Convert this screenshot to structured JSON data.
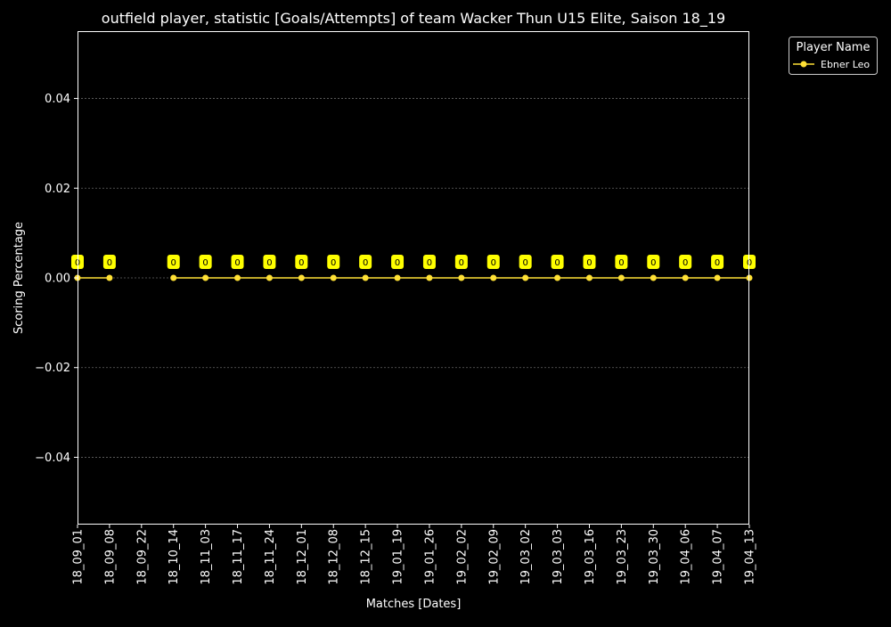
{
  "chart_data": {
    "type": "line",
    "title": "outfield player, statistic [Goals/Attempts] of team Wacker Thun U15 Elite, Saison 18_19",
    "xlabel": "Matches [Dates]",
    "ylabel": "Scoring Percentage",
    "categories": [
      "18_09_01",
      "18_09_08",
      "18_09_22",
      "18_10_14",
      "18_11_03",
      "18_11_17",
      "18_11_24",
      "18_12_01",
      "18_12_08",
      "18_12_15",
      "19_01_19",
      "19_01_26",
      "19_02_02",
      "19_02_09",
      "19_03_02",
      "19_03_03",
      "19_03_16",
      "19_03_23",
      "19_03_30",
      "19_04_06",
      "19_04_07",
      "19_04_13"
    ],
    "series": [
      {
        "name": "Ebner Leo",
        "values": [
          0,
          0,
          null,
          0,
          0,
          0,
          0,
          0,
          0,
          0,
          0,
          0,
          0,
          0,
          0,
          0,
          0,
          0,
          0,
          0,
          0,
          0
        ],
        "labels": [
          "0",
          "0",
          null,
          "0",
          "0",
          "0",
          "0",
          "0",
          "0",
          "0",
          "0",
          "0",
          "0",
          "0",
          "0",
          "0",
          "0",
          "0",
          "0",
          "0",
          "0",
          "0"
        ]
      }
    ],
    "ylim": [
      -0.055,
      0.055
    ],
    "yticks": [
      0.04,
      0.02,
      0.0,
      -0.02,
      -0.04
    ],
    "ytick_labels": [
      "0.04",
      "0.02",
      "0.00",
      "−0.02",
      "−0.04"
    ],
    "grid": true,
    "legend": {
      "title": "Player Name",
      "placement": "outside-top-right"
    },
    "colors": {
      "background": "#000000",
      "axes": "#ffffff",
      "text": "#ffffff",
      "grid": "#666666",
      "series": "#ffe135",
      "label_box": "#ffff00",
      "label_text": "#000000"
    }
  }
}
